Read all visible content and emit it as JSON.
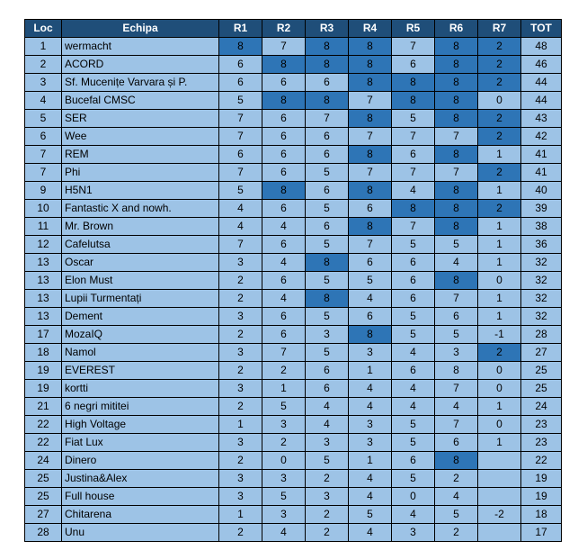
{
  "table": {
    "headers": [
      "Loc",
      "Echipa",
      "R1",
      "R2",
      "R3",
      "R4",
      "R5",
      "R6",
      "R7",
      "TOT"
    ],
    "highlight_color": "#2e75b6",
    "rows": [
      {
        "loc": "1",
        "team": "wermacht",
        "r": [
          "8",
          "7",
          "8",
          "8",
          "7",
          "8",
          "2"
        ],
        "tot": "48",
        "hl": [
          0,
          2,
          3,
          5,
          6
        ]
      },
      {
        "loc": "2",
        "team": "ACORD",
        "r": [
          "6",
          "8",
          "8",
          "8",
          "6",
          "8",
          "2"
        ],
        "tot": "46",
        "hl": [
          1,
          2,
          3,
          5,
          6
        ]
      },
      {
        "loc": "3",
        "team": "Sf. Mucenițe Varvara și P.",
        "r": [
          "6",
          "6",
          "6",
          "8",
          "8",
          "8",
          "2"
        ],
        "tot": "44",
        "hl": [
          3,
          4,
          5,
          6
        ]
      },
      {
        "loc": "4",
        "team": "Bucefal CMSC",
        "r": [
          "5",
          "8",
          "8",
          "7",
          "8",
          "8",
          "0"
        ],
        "tot": "44",
        "hl": [
          1,
          2,
          4,
          5
        ]
      },
      {
        "loc": "5",
        "team": "SER",
        "r": [
          "7",
          "6",
          "7",
          "8",
          "5",
          "8",
          "2"
        ],
        "tot": "43",
        "hl": [
          3,
          5,
          6
        ]
      },
      {
        "loc": "6",
        "team": "Wee",
        "r": [
          "7",
          "6",
          "6",
          "7",
          "7",
          "7",
          "2"
        ],
        "tot": "42",
        "hl": [
          6
        ]
      },
      {
        "loc": "7",
        "team": "REM",
        "r": [
          "6",
          "6",
          "6",
          "8",
          "6",
          "8",
          "1"
        ],
        "tot": "41",
        "hl": [
          3,
          5
        ]
      },
      {
        "loc": "7",
        "team": "Phi",
        "r": [
          "7",
          "6",
          "5",
          "7",
          "7",
          "7",
          "2"
        ],
        "tot": "41",
        "hl": [
          6
        ]
      },
      {
        "loc": "9",
        "team": "H5N1",
        "r": [
          "5",
          "8",
          "6",
          "8",
          "4",
          "8",
          "1"
        ],
        "tot": "40",
        "hl": [
          1,
          3,
          5
        ]
      },
      {
        "loc": "10",
        "team": "Fantastic X and nowh.",
        "r": [
          "4",
          "6",
          "5",
          "6",
          "8",
          "8",
          "2"
        ],
        "tot": "39",
        "hl": [
          4,
          5,
          6
        ]
      },
      {
        "loc": "11",
        "team": "Mr. Brown",
        "r": [
          "4",
          "4",
          "6",
          "8",
          "7",
          "8",
          "1"
        ],
        "tot": "38",
        "hl": [
          3,
          5
        ]
      },
      {
        "loc": "12",
        "team": "Cafelutsa",
        "r": [
          "7",
          "6",
          "5",
          "7",
          "5",
          "5",
          "1"
        ],
        "tot": "36",
        "hl": []
      },
      {
        "loc": "13",
        "team": "Oscar",
        "r": [
          "3",
          "4",
          "8",
          "6",
          "6",
          "4",
          "1"
        ],
        "tot": "32",
        "hl": [
          2
        ]
      },
      {
        "loc": "13",
        "team": "Elon Must",
        "r": [
          "2",
          "6",
          "5",
          "5",
          "6",
          "8",
          "0"
        ],
        "tot": "32",
        "hl": [
          5
        ]
      },
      {
        "loc": "13",
        "team": "Lupii Turmentați",
        "r": [
          "2",
          "4",
          "8",
          "4",
          "6",
          "7",
          "1"
        ],
        "tot": "32",
        "hl": [
          2
        ]
      },
      {
        "loc": "13",
        "team": "Dement",
        "r": [
          "3",
          "6",
          "5",
          "6",
          "5",
          "6",
          "1"
        ],
        "tot": "32",
        "hl": []
      },
      {
        "loc": "17",
        "team": "MozaIQ",
        "r": [
          "2",
          "6",
          "3",
          "8",
          "5",
          "5",
          "-1"
        ],
        "tot": "28",
        "hl": [
          3
        ]
      },
      {
        "loc": "18",
        "team": "Namol",
        "r": [
          "3",
          "7",
          "5",
          "3",
          "4",
          "3",
          "2"
        ],
        "tot": "27",
        "hl": [
          6
        ]
      },
      {
        "loc": "19",
        "team": "EVEREST",
        "r": [
          "2",
          "2",
          "6",
          "1",
          "6",
          "8",
          "0"
        ],
        "tot": "25",
        "hl": []
      },
      {
        "loc": "19",
        "team": "kortti",
        "r": [
          "3",
          "1",
          "6",
          "4",
          "4",
          "7",
          "0"
        ],
        "tot": "25",
        "hl": []
      },
      {
        "loc": "21",
        "team": "6 negri mititei",
        "r": [
          "2",
          "5",
          "4",
          "4",
          "4",
          "4",
          "1"
        ],
        "tot": "24",
        "hl": []
      },
      {
        "loc": "22",
        "team": "High Voltage",
        "r": [
          "1",
          "3",
          "4",
          "3",
          "5",
          "7",
          "0"
        ],
        "tot": "23",
        "hl": []
      },
      {
        "loc": "22",
        "team": "Fiat Lux",
        "r": [
          "3",
          "2",
          "3",
          "3",
          "5",
          "6",
          "1"
        ],
        "tot": "23",
        "hl": []
      },
      {
        "loc": "24",
        "team": "Dinero",
        "r": [
          "2",
          "0",
          "5",
          "1",
          "6",
          "8",
          ""
        ],
        "tot": "22",
        "hl": [
          5
        ]
      },
      {
        "loc": "25",
        "team": "Justina&Alex",
        "r": [
          "3",
          "3",
          "2",
          "4",
          "5",
          "2",
          ""
        ],
        "tot": "19",
        "hl": []
      },
      {
        "loc": "25",
        "team": "Full house",
        "r": [
          "3",
          "5",
          "3",
          "4",
          "0",
          "4",
          ""
        ],
        "tot": "19",
        "hl": []
      },
      {
        "loc": "27",
        "team": "Chitarena",
        "r": [
          "1",
          "3",
          "2",
          "5",
          "4",
          "5",
          "-2"
        ],
        "tot": "18",
        "hl": []
      },
      {
        "loc": "28",
        "team": "Unu",
        "r": [
          "2",
          "4",
          "2",
          "4",
          "3",
          "2",
          ""
        ],
        "tot": "17",
        "hl": []
      }
    ]
  }
}
